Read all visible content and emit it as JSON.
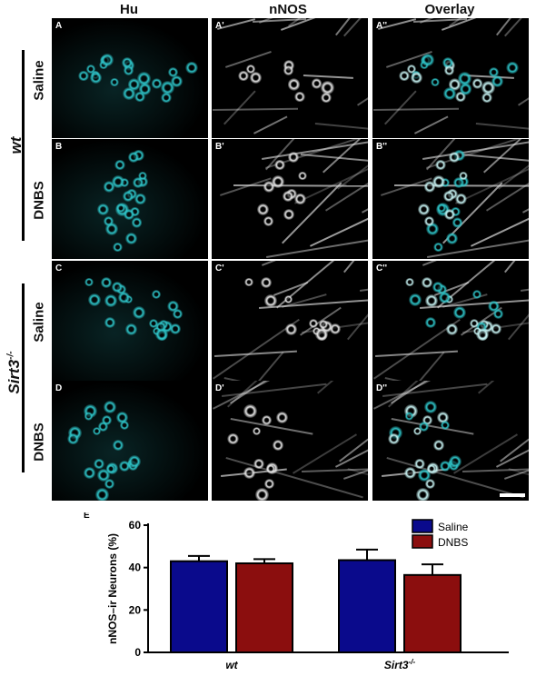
{
  "column_headers": [
    "Hu",
    "nNOS",
    "Overlay"
  ],
  "panel_labels": [
    [
      "A",
      "A'",
      "A''"
    ],
    [
      "B",
      "B'",
      "B''"
    ],
    [
      "C",
      "C'",
      "C''"
    ],
    [
      "D",
      "D'",
      "D''"
    ]
  ],
  "row_labels": [
    "Saline",
    "DNBS",
    "Saline",
    "DNBS"
  ],
  "group_labels": [
    "wt",
    "Sirt3",
    "-/-"
  ],
  "colors": {
    "hu": "#2ec4c8",
    "nnos": "#e6e6e6",
    "saline": "#0a0a8c",
    "dnbs": "#8b0e0e"
  },
  "chart_data": {
    "type": "bar",
    "panel_label": "E",
    "categories": [
      "wt",
      "Sirt3-/-"
    ],
    "category_main": [
      "wt",
      "Sirt3"
    ],
    "category_sup": [
      "",
      "-/-"
    ],
    "ylabel": "nNOS–ir Neurons (%)",
    "ylim": [
      0,
      60
    ],
    "yticks": [
      0,
      20,
      40,
      60
    ],
    "series": [
      {
        "name": "Saline",
        "values": [
          43,
          43.5
        ],
        "errors": [
          2.5,
          5
        ],
        "color": "#0a0a8c"
      },
      {
        "name": "DNBS",
        "values": [
          42,
          36.5
        ],
        "errors": [
          2,
          5
        ],
        "color": "#8b0e0e"
      }
    ],
    "legend_position": "top-right"
  }
}
